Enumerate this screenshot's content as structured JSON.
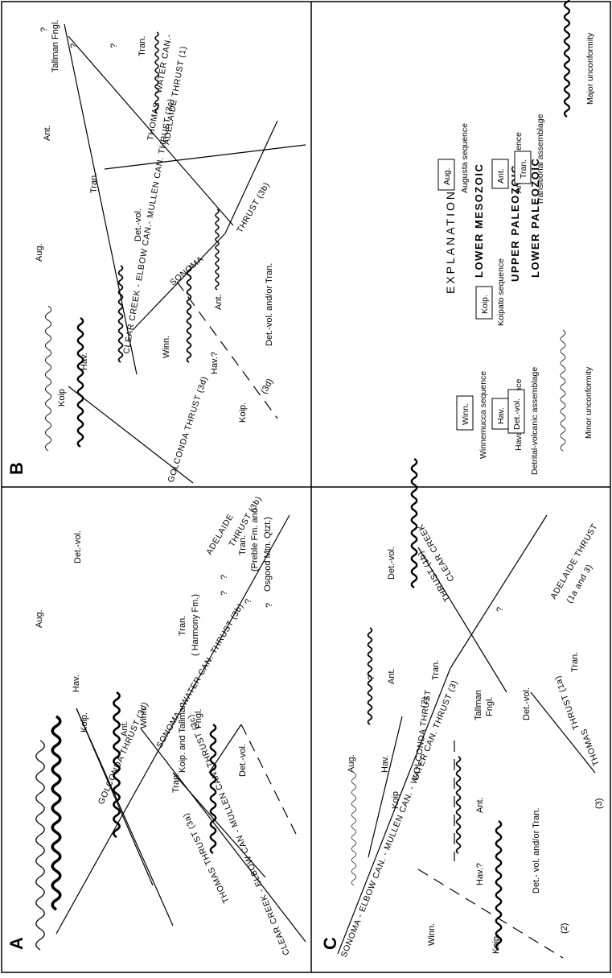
{
  "panels": {
    "A": {
      "letter": "A",
      "labels": {
        "aug": "Aug.",
        "koip": "Koip.",
        "hav": "Hav.",
        "ant": "Ant.",
        "winn": "Winn.",
        "tran": "Tran.",
        "det_vol_top": "Det.-vol.",
        "det_vol_bottom": "Det.-vol.",
        "koip_tallman": "Koip. and Tallman",
        "fngl": "Fngl.",
        "tran_harmony": "Tran.",
        "harmony": "( Harmony Fm.)",
        "tran_preble": "Tran.",
        "preble": "(Preble Fm. and",
        "osgood": "Osgood Mtn. Qtzt.)",
        "q1": "?",
        "q2": "?",
        "q3": "?",
        "q4": "?"
      },
      "thrusts": {
        "golconda": "GOLCONDA  THRUST  (3d)",
        "mullen": "CLEAR CREEK - ELBOW CAN - MULLEN CAN. THRUST  (3c)",
        "sonoma": "SONOMA - WATER   CAN. THRUST  (3b)",
        "adelaide": "ADELAIDE",
        "adelaide_thrust": "THRUST (3b)",
        "thomas": "THOMAS  THRUST  (3a)"
      }
    },
    "B": {
      "letter": "B",
      "labels": {
        "koip": "Koip",
        "aug": "Aug.",
        "hav": "Hav.",
        "winn": "Winn.",
        "tran_mid": "Tran.",
        "ant_top": "Ant.",
        "det_vol": "Det.-vol.",
        "tallman": "Tallman  Fngl.",
        "tran_right": "Tran.",
        "koip_low": "Koip.",
        "hav_q": "Hav.?",
        "ant_low": "Ant.",
        "det_tran": "Det.-vol.  and/or  Tran.",
        "q1": "?",
        "q2": "?",
        "q3": "?",
        "q4": "(3d)"
      },
      "thrusts": {
        "golconda": "GOLCONDA  THRUST  (3d)",
        "clear_creek": "CLEAR  CREEK - ELBOW CAN.- MULLEN  CAN.  THRUST  (3c)",
        "sonoma": "SONOMA",
        "sonoma_thrust": "THRUST  (3b)",
        "thomas": "THOMAS - WATER CAN.-",
        "adelaide": "ADELAIDE  THRUST (1)"
      }
    },
    "C": {
      "letter": "C",
      "labels": {
        "winn": "Winn.",
        "aug": "Aug.",
        "koip_up": "Koip",
        "hav": "Hav.",
        "ant_up": "Ant.",
        "tran_up": "Tran.",
        "det_vol_up": "Det.-vol.",
        "tallman": "Tallman",
        "fngl": "Fngl.",
        "det_vol_mid": "Det.-vol.",
        "ant_low": "Ant.",
        "koip_low": "Koip.",
        "hav_q": "Hav.?",
        "det_tran": "Det.- vol.  and/or  Tran.",
        "tran_low": "Tran.",
        "n2": "(2)",
        "n3": "(3)",
        "q1": "?",
        "q2": "?"
      },
      "thrusts": {
        "sonoma": "SONOMA - ELBOW CAN. - MULLEN CAN. - WATER CAN. THRUST  (3)",
        "golconda": "GOLCONDA THRUST",
        "golconda_n": "(2)",
        "clear_creek": "CLEAR CREEK",
        "clear_thrust": "THRUST  (1b)",
        "adelaide": "ADELAIDE  THRUST",
        "adelaide_n": "(1a and 3)",
        "thomas": "THOMAS",
        "thomas_thrust": "THRUST (1a)"
      }
    }
  },
  "explanation": {
    "title": "EXPLANATION",
    "lower_mesozoic": "LOWER   MESOZOIC",
    "upper_paleozoic": "UPPER   PALEOZOIC",
    "lower_paleozoic": "LOWER   PALEOZOIC",
    "winn_abbr": "Winn.",
    "winn_name": "Winnemucca  sequence",
    "aug_abbr": "Aug.",
    "aug_name": "Augusta  sequence",
    "koip_abbr": "Koip.",
    "koip_name": "Koipato  sequence",
    "hav_abbr": "Hav.",
    "hav_name": "Havallah  sequence",
    "ant_abbr": "Ant.",
    "ant_name": "Antler  sequence",
    "det_abbr": "Det.-vol.",
    "det_name": "Detrital-volcanic  assemblage",
    "tran_abbr": "Tran.",
    "tran_name": "Transitional  assemblage",
    "minor": "Minor  unconformity",
    "major": "Major  unconformity"
  }
}
